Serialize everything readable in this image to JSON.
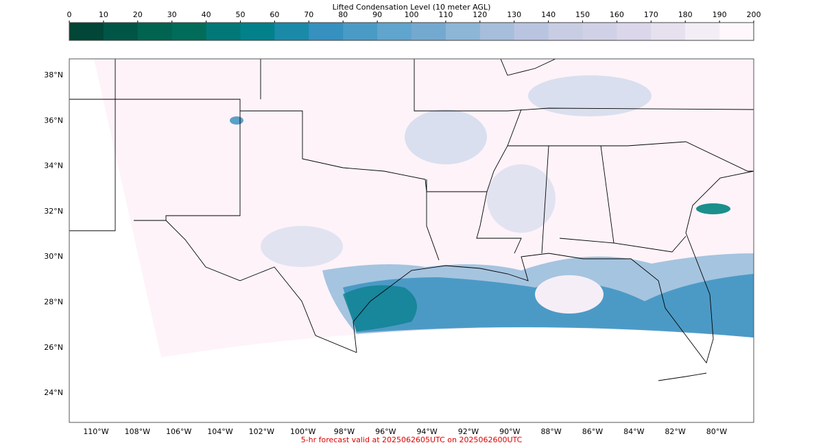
{
  "colorbar": {
    "label": "Lifted Condensation Level (10 meter AGL)",
    "range": [
      0,
      200
    ],
    "ticks": [
      0,
      10,
      20,
      30,
      40,
      50,
      60,
      70,
      80,
      90,
      100,
      110,
      120,
      130,
      140,
      150,
      160,
      170,
      180,
      190,
      200
    ],
    "colors": [
      "#014636",
      "#015547",
      "#016450",
      "#016c59",
      "#017877",
      "#02818a",
      "#1b89a8",
      "#3690c0",
      "#4a9ac6",
      "#5fa5cd",
      "#74a9cf",
      "#8db5d6",
      "#a6bddb",
      "#b9c5e0",
      "#c8cde4",
      "#d0d1e6",
      "#dcd6eb",
      "#e7e1ef",
      "#f3eef6",
      "#fff7fb"
    ]
  },
  "map": {
    "lat_labels": [
      "38°N",
      "36°N",
      "34°N",
      "32°N",
      "30°N",
      "28°N",
      "26°N",
      "24°N"
    ],
    "lon_labels": [
      "110°W",
      "108°W",
      "106°W",
      "104°W",
      "102°W",
      "100°W",
      "98°W",
      "96°W",
      "94°W",
      "92°W",
      "90°W",
      "88°W",
      "86°W",
      "84°W",
      "82°W",
      "80°W"
    ]
  },
  "footer": "5-hr forecast valid at 2025062605UTC on 2025062600UTC"
}
